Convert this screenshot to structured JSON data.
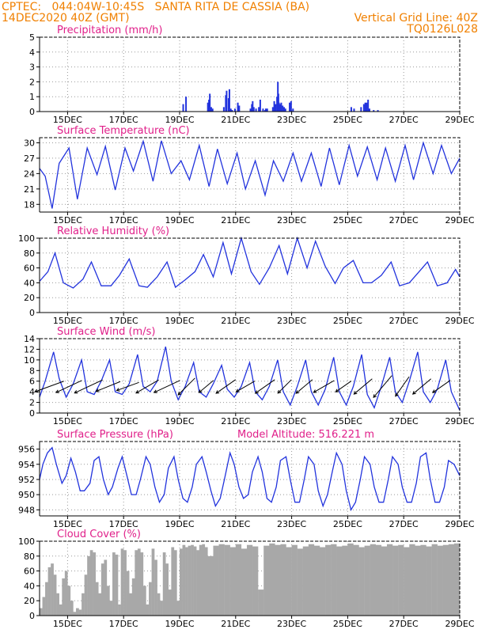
{
  "header": {
    "line1_left": "CPTEC:   044:04W-10:45S   SANTA RITA DE CASSIA (BA)",
    "line2_left": "14DEC2020 40Z (GMT)",
    "line2_right": "Vertical Grid Line: 40Z",
    "line3_right": "TQ0126L028"
  },
  "colors": {
    "header": "#f08000",
    "title": "#e0208a",
    "series": "#2233dd",
    "cloud": "#a8a8a8",
    "wind_arrow": "#000000"
  },
  "chart_data": [
    {
      "type": "bar",
      "title": "Precipitation (mm/h)",
      "x_tick_labels": [
        "15DEC",
        "17DEC",
        "19DEC",
        "21DEC",
        "23DEC",
        "25DEC",
        "27DEC",
        "29DEC"
      ],
      "xlim_days": [
        0,
        15
      ],
      "ylim": [
        0,
        5
      ],
      "y_ticks": [
        0,
        1,
        2,
        3,
        4,
        5
      ],
      "x_day": [
        5.1,
        5.2,
        5.98,
        6.02,
        6.05,
        6.1,
        6.15,
        6.55,
        6.62,
        6.65,
        6.72,
        6.75,
        6.8,
        6.85,
        6.95,
        7.05,
        7.1,
        7.5,
        7.55,
        7.58,
        7.62,
        7.7,
        7.8,
        7.85,
        7.95,
        8.02,
        8.05,
        8.1,
        8.3,
        8.35,
        8.4,
        8.45,
        8.48,
        8.5,
        8.52,
        8.55,
        8.6,
        8.65,
        8.7,
        8.75,
        8.9,
        8.95,
        9.02,
        11.1,
        11.2,
        11.45,
        11.55,
        11.6,
        11.62,
        11.65,
        11.7,
        11.75,
        11.9,
        12.05
      ],
      "values": [
        0.5,
        1.0,
        0.6,
        0.8,
        1.2,
        0.3,
        0.2,
        0.3,
        1.1,
        1.4,
        0.9,
        1.5,
        0.2,
        0.1,
        0.2,
        0.6,
        0.4,
        0.2,
        0.5,
        0.7,
        0.3,
        0.2,
        0.3,
        0.8,
        0.2,
        0.1,
        0.2,
        0.2,
        0.3,
        0.7,
        0.5,
        1.0,
        2.0,
        1.2,
        0.6,
        0.5,
        0.6,
        0.4,
        0.3,
        0.2,
        0.6,
        0.7,
        0.2,
        0.3,
        0.2,
        0.3,
        0.5,
        0.6,
        0.4,
        0.6,
        0.8,
        0.2,
        0.1,
        0.1
      ]
    },
    {
      "type": "line",
      "title": "Surface Temperature (nC)",
      "x_tick_labels": [
        "15DEC",
        "17DEC",
        "19DEC",
        "21DEC",
        "23DEC",
        "25DEC",
        "27DEC",
        "29DEC"
      ],
      "xlim_days": [
        0,
        15
      ],
      "ylim": [
        16.5,
        31
      ],
      "y_ticks": [
        18,
        21,
        24,
        27,
        30
      ],
      "x_day": [
        0,
        0.2,
        0.45,
        0.7,
        1.05,
        1.35,
        1.7,
        2.05,
        2.35,
        2.7,
        3.05,
        3.35,
        3.7,
        4.05,
        4.35,
        4.7,
        5.05,
        5.35,
        5.7,
        6.05,
        6.35,
        6.7,
        7.05,
        7.35,
        7.7,
        8.05,
        8.35,
        8.7,
        9.05,
        9.35,
        9.7,
        10.05,
        10.35,
        10.7,
        11.05,
        11.35,
        11.7,
        12.05,
        12.35,
        12.7,
        13.05,
        13.35,
        13.7,
        14.05,
        14.35,
        14.7,
        15
      ],
      "values": [
        25,
        23.5,
        17.2,
        26,
        29,
        19,
        29,
        23.8,
        29.3,
        20.8,
        29,
        24.5,
        30.3,
        22.5,
        30.4,
        24,
        26.5,
        22.8,
        29.5,
        21.5,
        28.8,
        22,
        28,
        21,
        26.5,
        19.8,
        26.5,
        22.5,
        28,
        22.5,
        28,
        21.5,
        29,
        21.8,
        29.5,
        23.5,
        29.2,
        22.8,
        29,
        22.5,
        29.5,
        22.8,
        30,
        24,
        29.5,
        24,
        27
      ]
    },
    {
      "type": "line",
      "title": "Relative Humidity (%)",
      "x_tick_labels": [
        "15DEC",
        "17DEC",
        "19DEC",
        "21DEC",
        "23DEC",
        "25DEC",
        "27DEC",
        "29DEC"
      ],
      "xlim_days": [
        0,
        15
      ],
      "ylim": [
        0,
        100
      ],
      "y_ticks": [
        0,
        20,
        40,
        60,
        80,
        100
      ],
      "x_day": [
        0,
        0.3,
        0.55,
        0.85,
        1.2,
        1.55,
        1.85,
        2.2,
        2.55,
        2.85,
        3.2,
        3.55,
        3.85,
        4.2,
        4.55,
        4.85,
        5.2,
        5.55,
        5.85,
        6.2,
        6.55,
        6.85,
        7.2,
        7.55,
        7.85,
        8.2,
        8.55,
        8.85,
        9.2,
        9.55,
        9.85,
        10.2,
        10.55,
        10.85,
        11.2,
        11.55,
        11.85,
        12.2,
        12.55,
        12.85,
        13.2,
        13.55,
        13.85,
        14.2,
        14.55,
        14.85,
        15
      ],
      "values": [
        42,
        55,
        80,
        40,
        33,
        45,
        68,
        36,
        36,
        50,
        72,
        36,
        34,
        48,
        68,
        34,
        44,
        55,
        78,
        48,
        94,
        52,
        100,
        55,
        38,
        60,
        90,
        52,
        100,
        60,
        96,
        62,
        39,
        60,
        70,
        40,
        40,
        50,
        68,
        36,
        40,
        55,
        68,
        36,
        40,
        58,
        48
      ]
    },
    {
      "type": "line",
      "title": "Surface Wind (m/s)",
      "x_tick_labels": [
        "15DEC",
        "17DEC",
        "19DEC",
        "21DEC",
        "23DEC",
        "25DEC",
        "27DEC",
        "29DEC"
      ],
      "xlim_days": [
        0,
        15
      ],
      "ylim": [
        0,
        14
      ],
      "y_ticks": [
        0,
        2,
        4,
        6,
        8,
        10,
        12,
        14
      ],
      "x_day": [
        0,
        0.2,
        0.5,
        0.7,
        0.95,
        1.2,
        1.5,
        1.7,
        1.95,
        2.2,
        2.5,
        2.7,
        2.95,
        3.2,
        3.5,
        3.7,
        3.95,
        4.2,
        4.5,
        4.7,
        4.95,
        5.2,
        5.5,
        5.7,
        5.95,
        6.2,
        6.5,
        6.7,
        6.95,
        7.2,
        7.5,
        7.7,
        7.95,
        8.2,
        8.5,
        8.7,
        8.95,
        9.2,
        9.5,
        9.7,
        9.95,
        10.2,
        10.5,
        10.7,
        10.95,
        11.2,
        11.5,
        11.7,
        11.95,
        12.2,
        12.5,
        12.7,
        12.95,
        13.2,
        13.5,
        13.7,
        13.95,
        14.2,
        14.5,
        14.7,
        15
      ],
      "values": [
        3,
        6,
        11.5,
        6.5,
        3,
        5.5,
        10,
        4,
        3.5,
        6,
        10,
        4,
        3.5,
        5.5,
        11,
        5,
        4,
        6,
        12.5,
        6,
        2.5,
        5,
        9.5,
        4,
        3,
        5.5,
        9,
        4.5,
        3,
        5,
        9.5,
        4,
        2.5,
        5,
        10,
        4,
        1.5,
        5,
        10,
        4,
        1.5,
        4.5,
        10.5,
        4,
        1.5,
        5,
        11,
        3.5,
        1,
        5,
        10.5,
        4,
        2,
        6,
        11.5,
        4,
        2,
        4.5,
        10,
        4,
        0.5
      ],
      "arrows": {
        "x_day": [
          0.35,
          1.05,
          1.75,
          2.45,
          3.15,
          3.85,
          4.55,
          5.25,
          5.95,
          6.65,
          7.35,
          8.05,
          8.75,
          9.45,
          10.15,
          10.85,
          11.55,
          12.25,
          12.95,
          13.65,
          14.35
        ],
        "speed": [
          6.5,
          6,
          6.5,
          5.5,
          5,
          5.5,
          6,
          5,
          4,
          5,
          4.5,
          5,
          4,
          4.5,
          5,
          4,
          5,
          6,
          5,
          5,
          4.5
        ],
        "to_dir_deg": [
          250,
          245,
          245,
          248,
          250,
          240,
          245,
          225,
          230,
          235,
          240,
          235,
          225,
          230,
          240,
          235,
          230,
          220,
          215,
          230,
          235
        ]
      }
    },
    {
      "type": "line",
      "title": "Surface Pressure (hPa)",
      "annotation": "Model Altitude: 516.221 m",
      "x_tick_labels": [
        "15DEC",
        "17DEC",
        "19DEC",
        "21DEC",
        "23DEC",
        "25DEC",
        "27DEC",
        "29DEC"
      ],
      "xlim_days": [
        0,
        15
      ],
      "ylim": [
        947.2,
        957
      ],
      "y_ticks": [
        948,
        950,
        952,
        954,
        956
      ],
      "x_day": [
        0,
        0.12,
        0.28,
        0.45,
        0.6,
        0.8,
        0.95,
        1.12,
        1.28,
        1.45,
        1.6,
        1.8,
        1.95,
        2.12,
        2.28,
        2.45,
        2.6,
        2.8,
        2.95,
        3.12,
        3.28,
        3.45,
        3.6,
        3.8,
        3.95,
        4.12,
        4.28,
        4.45,
        4.6,
        4.8,
        4.95,
        5.12,
        5.28,
        5.45,
        5.6,
        5.8,
        5.95,
        6.12,
        6.28,
        6.45,
        6.6,
        6.8,
        6.95,
        7.12,
        7.28,
        7.45,
        7.6,
        7.8,
        7.95,
        8.12,
        8.28,
        8.45,
        8.6,
        8.8,
        8.95,
        9.12,
        9.28,
        9.45,
        9.6,
        9.8,
        9.95,
        10.12,
        10.28,
        10.45,
        10.6,
        10.8,
        10.95,
        11.12,
        11.28,
        11.45,
        11.6,
        11.8,
        11.95,
        12.12,
        12.28,
        12.45,
        12.6,
        12.8,
        12.95,
        13.12,
        13.28,
        13.45,
        13.6,
        13.8,
        13.95,
        14.12,
        14.28,
        14.45,
        14.6,
        14.8,
        15
      ],
      "values": [
        952,
        954,
        955.5,
        956.2,
        954,
        951.5,
        952.5,
        954.8,
        953,
        950.5,
        950.5,
        951.5,
        954.5,
        955,
        952,
        950,
        951,
        953.5,
        955,
        952.5,
        950,
        950,
        952,
        955,
        954,
        951,
        949,
        950,
        953.5,
        955,
        952,
        949.5,
        949,
        951,
        954,
        955,
        953,
        950.5,
        948.5,
        949.5,
        952,
        955.5,
        954,
        951,
        949.5,
        950,
        953,
        955,
        953,
        949.5,
        949,
        951,
        954.5,
        955,
        952,
        949,
        949,
        952,
        955,
        954,
        950.5,
        948.5,
        950,
        953,
        955.5,
        954,
        950.5,
        948,
        949,
        952,
        955,
        954,
        951,
        949,
        949,
        952,
        955,
        954,
        951,
        949,
        949,
        951.5,
        955,
        955.5,
        952,
        949,
        949,
        951,
        954.5,
        954,
        952.5
      ]
    },
    {
      "type": "area",
      "title": "Cloud Cover (%)",
      "x_tick_labels": [
        "15DEC",
        "17DEC",
        "19DEC",
        "21DEC",
        "23DEC",
        "25DEC",
        "27DEC",
        "29DEC"
      ],
      "xlim_days": [
        0,
        15
      ],
      "ylim": [
        0,
        100
      ],
      "y_ticks": [
        0,
        20,
        40,
        60,
        80,
        100
      ],
      "x_day": [
        0,
        0.1,
        0.2,
        0.3,
        0.4,
        0.5,
        0.6,
        0.7,
        0.8,
        0.9,
        1.0,
        1.1,
        1.2,
        1.3,
        1.4,
        1.5,
        1.6,
        1.7,
        1.8,
        1.9,
        2.0,
        2.1,
        2.2,
        2.3,
        2.4,
        2.5,
        2.6,
        2.7,
        2.8,
        2.9,
        3.0,
        3.1,
        3.2,
        3.3,
        3.4,
        3.5,
        3.6,
        3.7,
        3.8,
        3.9,
        4.0,
        4.1,
        4.2,
        4.3,
        4.4,
        4.5,
        4.6,
        4.7,
        4.8,
        4.9,
        5.0,
        5.1,
        5.2,
        5.3,
        5.4,
        5.5,
        5.6,
        5.7,
        5.8,
        5.9,
        6.0,
        6.2,
        6.4,
        6.6,
        6.8,
        7.0,
        7.2,
        7.4,
        7.6,
        7.8,
        8.0,
        8.2,
        8.4,
        8.6,
        8.8,
        9.0,
        9.2,
        9.4,
        9.6,
        9.8,
        10.0,
        10.2,
        10.4,
        10.6,
        10.8,
        11.0,
        11.2,
        11.4,
        11.6,
        11.8,
        12.0,
        12.2,
        12.4,
        12.6,
        12.8,
        13.0,
        13.2,
        13.4,
        13.6,
        13.8,
        14.0,
        14.2,
        14.4,
        14.6,
        14.8,
        15
      ],
      "values": [
        10,
        25,
        45,
        65,
        70,
        55,
        30,
        15,
        50,
        60,
        40,
        20,
        5,
        10,
        8,
        30,
        55,
        80,
        88,
        85,
        45,
        30,
        70,
        75,
        40,
        20,
        85,
        82,
        15,
        90,
        88,
        60,
        30,
        50,
        88,
        90,
        85,
        40,
        15,
        45,
        90,
        75,
        30,
        20,
        85,
        70,
        35,
        92,
        88,
        20,
        90,
        95,
        92,
        94,
        95,
        93,
        88,
        95,
        96,
        92,
        80,
        94,
        96,
        95,
        92,
        96,
        90,
        95,
        93,
        35,
        94,
        97,
        95,
        96,
        92,
        95,
        90,
        93,
        96,
        94,
        92,
        95,
        96,
        93,
        94,
        97,
        95,
        92,
        94,
        96,
        95,
        93,
        96,
        94,
        95,
        92,
        96,
        94,
        95,
        93,
        96,
        94,
        95,
        96,
        97,
        95
      ]
    }
  ]
}
